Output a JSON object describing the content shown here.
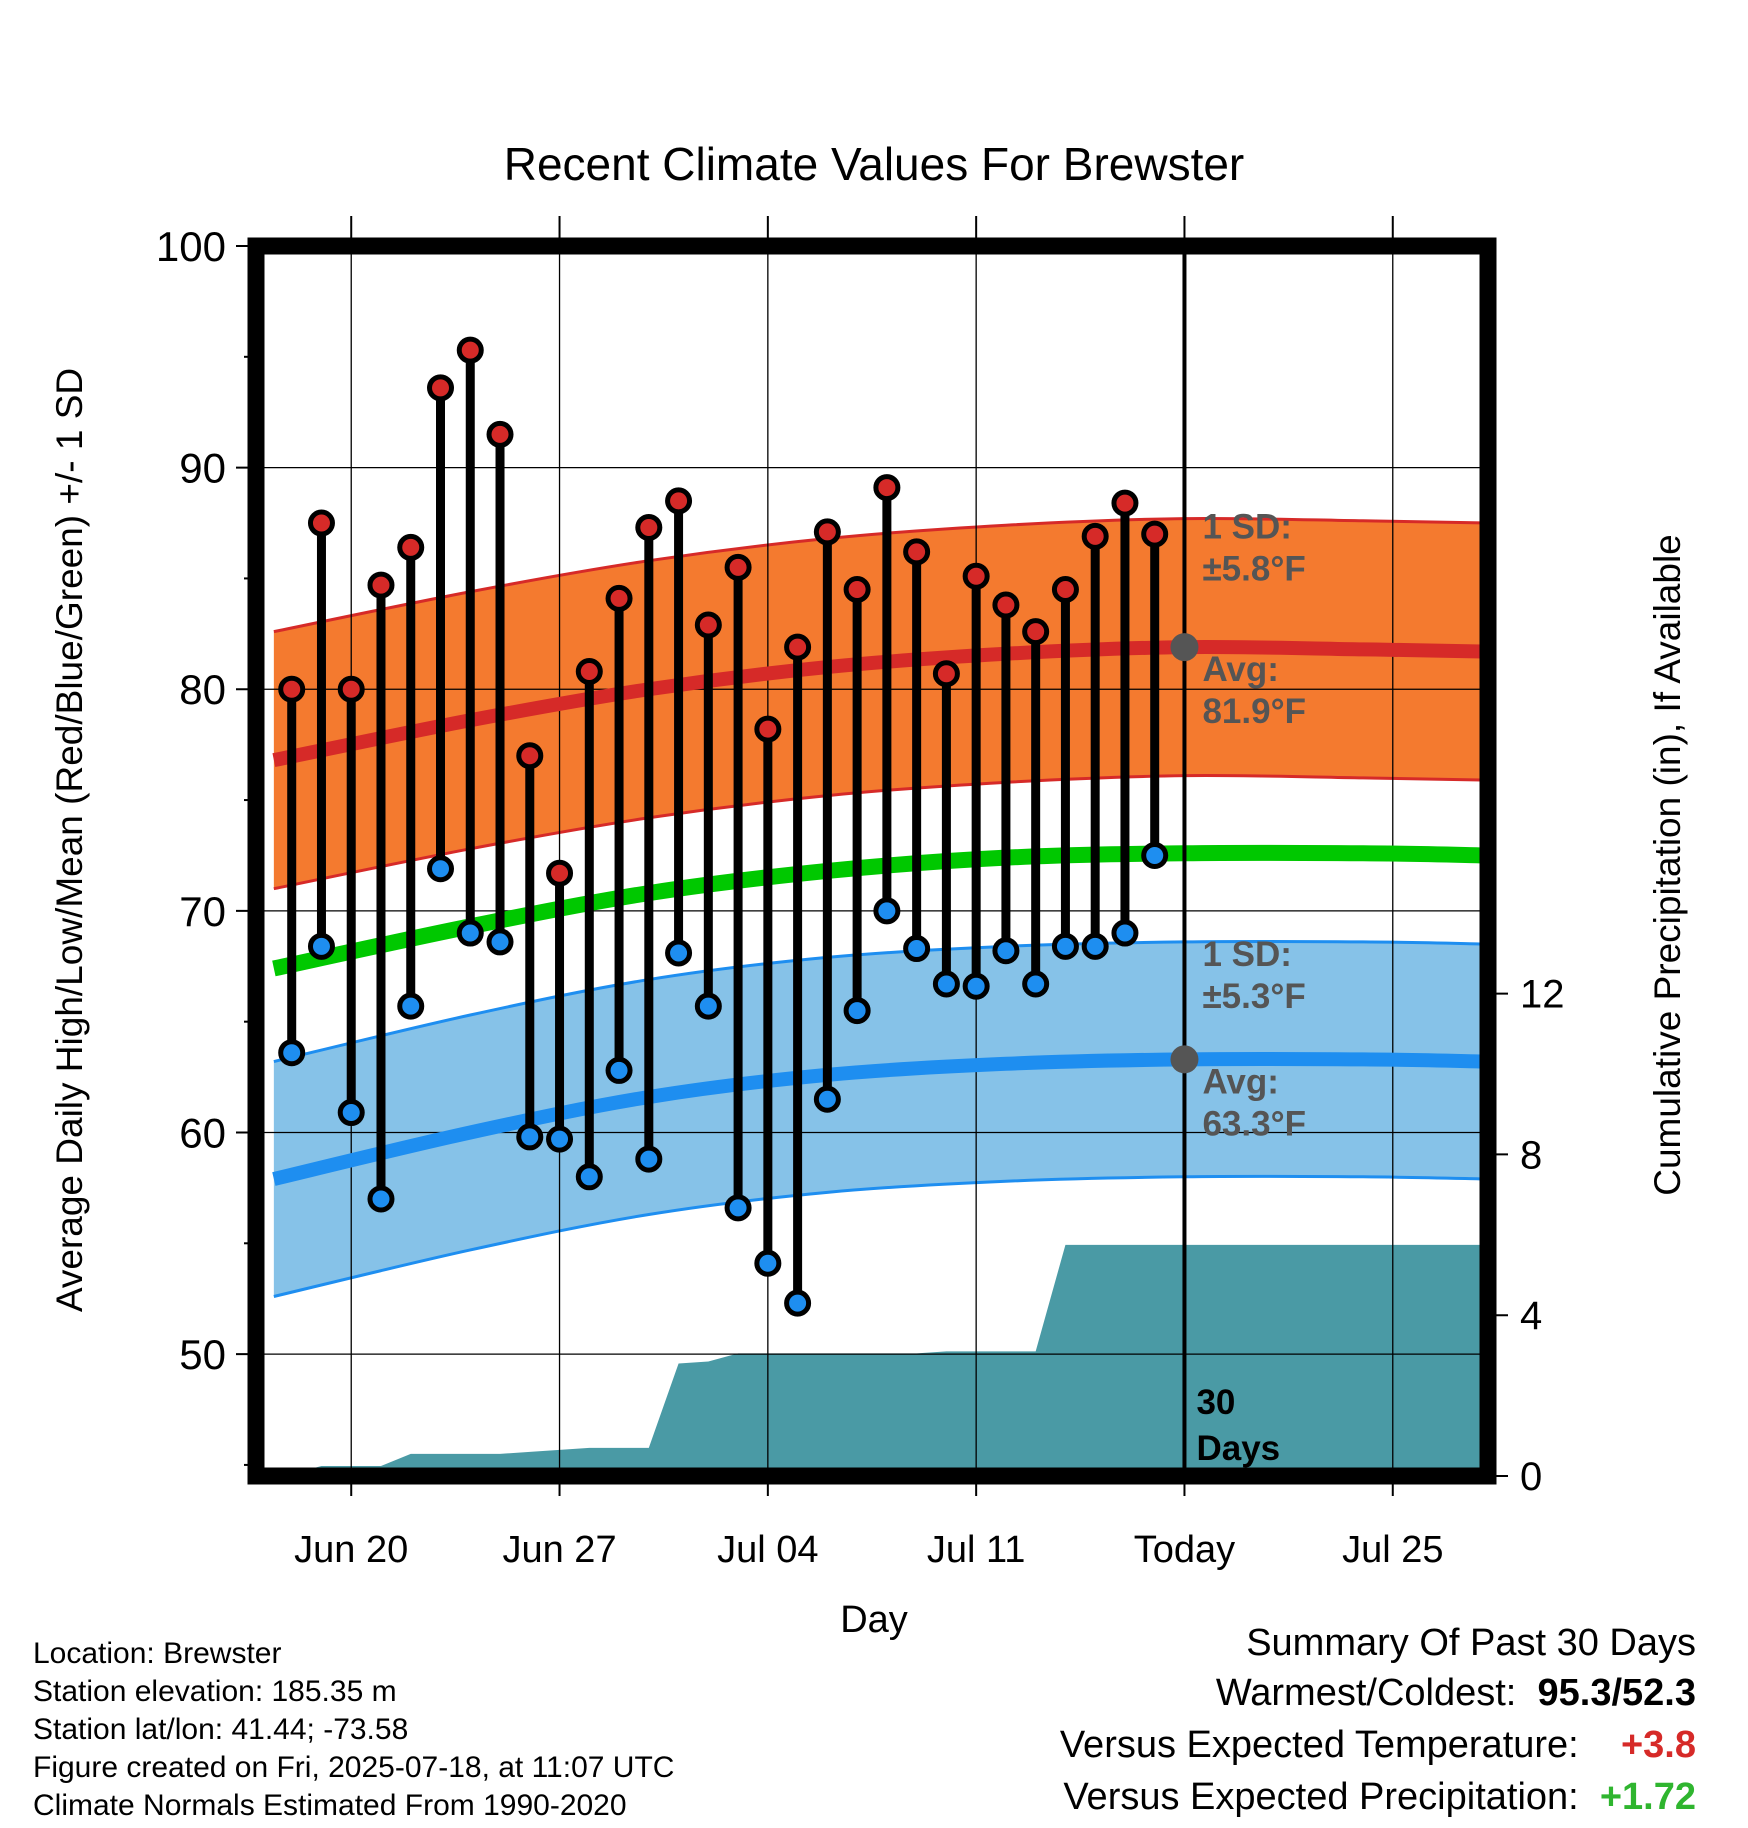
{
  "chart_data": {
    "type": "line",
    "title": "Recent Climate Values For Brewster",
    "xlabel": "Day",
    "ylabel": "Average Daily High/Low/Mean (Red/Blue/Green) +/- 1 SD",
    "ylabel_right": "Cumulative Precipitation (in), If Available",
    "ylim": [
      44.5,
      100
    ],
    "ylim_right": [
      0,
      30.6
    ],
    "xlim": [
      -3.2,
      38.2
    ],
    "x_ticks": [
      {
        "x": 0,
        "label": "Jun 20"
      },
      {
        "x": 7,
        "label": "Jun 27"
      },
      {
        "x": 14,
        "label": "Jul 04"
      },
      {
        "x": 21,
        "label": "Jul 11"
      },
      {
        "x": 28,
        "label": "Today"
      },
      {
        "x": 35,
        "label": "Jul 25"
      }
    ],
    "y_ticks": [
      50,
      60,
      70,
      80,
      90,
      100
    ],
    "y_ticks_right": [
      0,
      4,
      8,
      12
    ],
    "grid": true,
    "today_x": 28,
    "today_label": [
      "30",
      "Days"
    ],
    "normals": {
      "x": [
        -2.6,
        4,
        10,
        16,
        22,
        28,
        34,
        38.2
      ],
      "high_avg": [
        76.8,
        78.6,
        80.0,
        81.0,
        81.6,
        81.9,
        81.8,
        81.7
      ],
      "low_avg": [
        57.9,
        60.0,
        61.6,
        62.6,
        63.1,
        63.3,
        63.3,
        63.2
      ],
      "mean_avg": [
        67.4,
        69.3,
        70.8,
        71.8,
        72.4,
        72.6,
        72.6,
        72.5
      ],
      "high_sd": 5.8,
      "low_sd": 5.3
    },
    "series": [
      {
        "name": "High",
        "x": [
          -2,
          -1,
          0,
          1,
          2,
          3,
          4,
          5,
          6,
          7,
          8,
          9,
          10,
          11,
          12,
          13,
          14,
          15,
          16,
          17,
          18,
          19,
          20,
          21,
          22,
          23,
          24,
          25,
          26,
          27
        ],
        "values": [
          80.0,
          87.5,
          80.0,
          84.7,
          86.4,
          93.6,
          95.3,
          91.5,
          77.0,
          71.7,
          80.8,
          84.1,
          87.3,
          88.5,
          82.9,
          85.5,
          78.2,
          81.9,
          87.1,
          84.5,
          89.1,
          86.2,
          80.7,
          85.1,
          83.8,
          82.6,
          84.5,
          86.9,
          88.4,
          87.0
        ]
      },
      {
        "name": "Low",
        "x": [
          -2,
          -1,
          0,
          1,
          2,
          3,
          4,
          5,
          6,
          7,
          8,
          9,
          10,
          11,
          12,
          13,
          14,
          15,
          16,
          17,
          18,
          19,
          20,
          21,
          22,
          23,
          24,
          25,
          26,
          27
        ],
        "values": [
          63.6,
          68.4,
          60.9,
          57.0,
          65.7,
          71.9,
          69.0,
          68.6,
          59.8,
          59.7,
          58.0,
          62.8,
          58.8,
          68.1,
          65.7,
          56.6,
          54.1,
          52.3,
          61.5,
          65.5,
          70.0,
          68.3,
          66.7,
          66.6,
          68.2,
          66.7,
          68.4,
          68.4,
          69.0,
          72.5
        ]
      }
    ],
    "precip": {
      "x": [
        -2.6,
        -2,
        -1,
        0,
        1,
        2,
        3,
        4,
        5,
        6,
        7,
        8,
        9,
        10,
        11,
        12,
        13,
        14,
        15,
        16,
        17,
        18,
        19,
        20,
        21,
        22,
        23,
        24,
        25,
        26,
        27,
        28,
        38.2
      ],
      "values": [
        0,
        0.05,
        0.25,
        0.25,
        0.25,
        0.55,
        0.55,
        0.55,
        0.55,
        0.6,
        0.65,
        0.7,
        0.7,
        0.7,
        2.8,
        2.85,
        3.05,
        3.05,
        3.05,
        3.05,
        3.05,
        3.05,
        3.05,
        3.1,
        3.1,
        3.1,
        3.1,
        5.75,
        5.75,
        5.75,
        5.75,
        5.75,
        5.75
      ]
    },
    "annotations": {
      "high_sd_line1": "1 SD:",
      "high_sd_line2": "±5.8°F",
      "high_avg_line1": "Avg:",
      "high_avg_line2": "81.9°F",
      "low_sd_line1": "1 SD:",
      "low_sd_line2": "±5.3°F",
      "low_avg_line1": "Avg:",
      "low_avg_line2": "63.3°F"
    },
    "colors": {
      "high_band": "#f47a2f",
      "high_line": "#d62a28",
      "low_band": "#86c2e8",
      "low_line": "#1e8ef0",
      "mean_line": "#00c800",
      "precip": "#4a9aa5",
      "high_dot": "#d62a28",
      "low_dot": "#1e8ef0",
      "annot": "#555555"
    }
  },
  "info": {
    "location": "Location: Brewster",
    "elevation": "Station elevation: 185.35 m",
    "latlon": "Station lat/lon: 41.44; -73.58",
    "created": "Figure created on Fri, 2025-07-18, at 11:07 UTC",
    "normals": "Climate Normals Estimated From 1990-2020"
  },
  "summary": {
    "title": "Summary Of Past 30 Days",
    "warm_label": "Warmest/Coldest:",
    "warm_value": "95.3",
    "cold_value": "52.3",
    "temp_label": "Versus Expected Temperature:",
    "temp_value": "+3.8",
    "temp_color": "#d62a28",
    "precip_label": "Versus Expected Precipitation:",
    "precip_value": "+1.72",
    "precip_color": "#2fb52f"
  }
}
